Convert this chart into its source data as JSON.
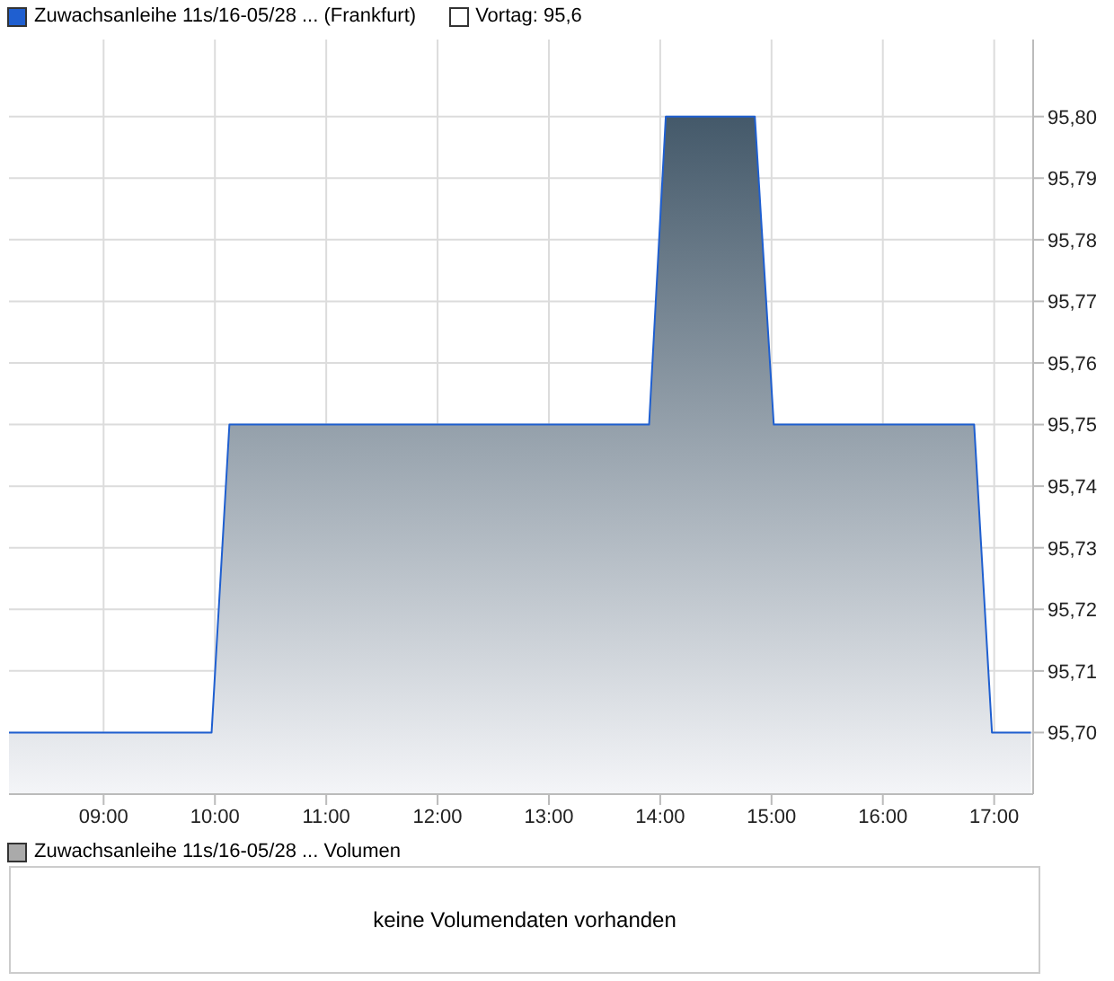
{
  "chart_data": [
    {
      "type": "area",
      "legend": "top left",
      "grid": true,
      "marker": "none",
      "line_style": "solid",
      "x": [
        8.15,
        9.97,
        10.13,
        13.9,
        14.05,
        14.85,
        15.02,
        16.82,
        16.98,
        17.33
      ],
      "series": [
        {
          "name": "Zuwachsanleihe 11s/16-05/28 ... (Frankfurt)",
          "color": "#1f5fd0",
          "values": [
            95.7,
            95.7,
            95.75,
            95.75,
            95.8,
            95.8,
            95.75,
            95.75,
            95.7,
            95.7
          ]
        }
      ],
      "annotations": [
        "Vortag: 95,6"
      ],
      "xlim": [
        8.15,
        17.35
      ],
      "xticks": [
        {
          "value": 9,
          "label": "09:00"
        },
        {
          "value": 10,
          "label": "10:00"
        },
        {
          "value": 11,
          "label": "11:00"
        },
        {
          "value": 12,
          "label": "12:00"
        },
        {
          "value": 13,
          "label": "13:00"
        },
        {
          "value": 14,
          "label": "14:00"
        },
        {
          "value": 15,
          "label": "15:00"
        },
        {
          "value": 16,
          "label": "16:00"
        },
        {
          "value": 17,
          "label": "17:00"
        }
      ],
      "ylim": [
        95.69,
        95.8125
      ],
      "yticks": [
        {
          "value": 95.7,
          "label": "95,70"
        },
        {
          "value": 95.71,
          "label": "95,71"
        },
        {
          "value": 95.72,
          "label": "95,72"
        },
        {
          "value": 95.73,
          "label": "95,73"
        },
        {
          "value": 95.74,
          "label": "95,74"
        },
        {
          "value": 95.75,
          "label": "95,75"
        },
        {
          "value": 95.76,
          "label": "95,76"
        },
        {
          "value": 95.77,
          "label": "95,77"
        },
        {
          "value": 95.78,
          "label": "95,78"
        },
        {
          "value": 95.79,
          "label": "95,79"
        },
        {
          "value": 95.8,
          "label": "95,80"
        }
      ]
    },
    {
      "type": "other",
      "title": "Zuwachsanleihe 11s/16-05/28 ... Volumen",
      "annotations": [
        "keine Volumendaten vorhanden"
      ]
    }
  ]
}
